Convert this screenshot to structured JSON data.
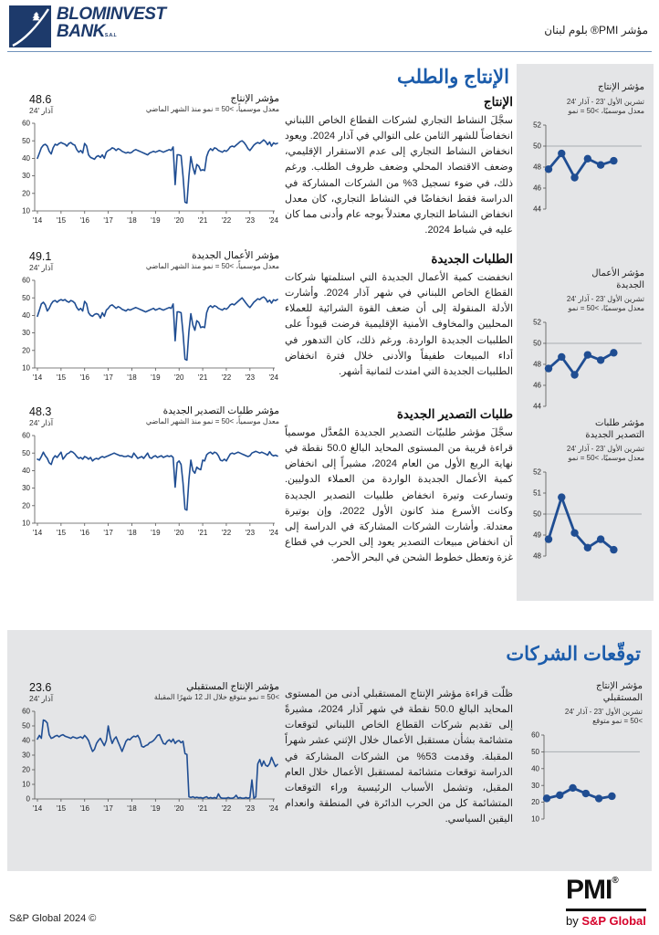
{
  "colors": {
    "accent_blue": "#1b5cab",
    "line_blue": "#1f4d92",
    "navy": "#1d3a6b",
    "band_gray": "#e4e5e7",
    "sp_red": "#d6002a",
    "refline_gray": "#a9adb2"
  },
  "header": {
    "brand_line1": "BLOMINVEST",
    "brand_line2": "BANK",
    "brand_suffix": "S.A.L",
    "doc_title": "مؤشر PMI® بلوم لبنان"
  },
  "section1": {
    "title": "الإنتاج والطلب",
    "blocks": [
      {
        "heading": "الإنتاج",
        "body": "سجَّلَ النشاط التجاري لشركات القطاع الخاص اللبناني انخفاضاً للشهر الثامن على التوالي في آذار 2024. ويعود انخفاض النشاط التجاري إلى عدم الاستقرار الإقليمي، وضعف الاقتصاد المحلي وضعف ظروف الطلب. ورغم ذلك، في ضوء تسجيل 3% من الشركات المشاركة في الدراسة فقط انخفاضًا في النشاط التجاري، كان معدل انخفاض النشاط التجاري معتدلاً بوجه عام وأدنى مما كان عليه في شباط 2024."
      },
      {
        "heading": "الطلبات الجديدة",
        "body": "انخفضت كمية الأعمال الجديدة التي استلمتها شركات القطاع الخاص اللبناني في شهر آذار 2024. وأشارت الأدلة المنقولة إلى أن ضعف القوة الشرائية للعملاء المحليين والمخاوف الأمنية الإقليمية فرضت قيوداً على الطلبيات الجديدة الواردة. ورغم ذلك، كان التدهور في أداء المبيعات طفيفاً والأدنى خلال فترة انخفاض الطلبيات الجديدة التي امتدت لثمانية أشهر."
      },
      {
        "heading": "طلبات التصدير الجديدة",
        "body": "سجَّلَ مؤشر طلبيّات التصدير الجديدة المُعدَّل موسمياً قراءة قريبة من المستوى المحايد البالغ 50.0 نقطة في نهاية الربع الأول من العام 2024، مشيراً إلى انخفاض كمية الأعمال الجديدة الواردة من العملاء الدوليين. وتسارعت وتيرة انخفاض طلبيات التصدير الجديدة وكانت الأسرع منذ كانون الأول 2022، وإن بوتيرة معتدلة. وأشارت الشركات المشاركة في الدراسة إلى أن انخفاض مبيعات التصدير يعود إلى الحرب في قطاع غزة وتعطل خطوط الشحن في البحر الأحمر."
      }
    ]
  },
  "section2": {
    "title": "توقّعات الشركات",
    "body": "ظلّت قراءة مؤشر الإنتاج المستقبلي أدنى من المستوى المحايد البالغ 50.0 نقطة في شهر آذار 2024، مشيرةً إلى تقديم شركات القطاع الخاص اللبناني لتوقعات متشائمة بشأن مستقبل الأعمال خلال الإثني عشر شهراً المقبلة. وقدمت 53% من الشركات المشاركة في الدراسة توقعات متشائمة لمستقبل الأعمال خلال العام المقبل، وتشمل الأسباب الرئيسية وراء التوقعات المتشائمة كل من الحرب الدائرة في المنطقة وانعدام اليقين السياسي."
  },
  "footer": {
    "copyright": "S&P Global 2024 ©",
    "pmi_word": "PMI",
    "pmi_reg": "®",
    "by": "by ",
    "sp_global": "S&P Global"
  },
  "chart_data": [
    {
      "name": "output-index-main",
      "type": "line",
      "kind": "main",
      "title_ar": "مؤشر الإنتاج",
      "subtitle_ar": "معدل موسمياً، >50 = نمو منذ الشهر الماضي",
      "latest_value": "48.6",
      "latest_period": "آذار '24",
      "x_range": "Jan 2014 - Mar 2024, monthly",
      "ylim": [
        10,
        60
      ],
      "yticks": [
        10,
        20,
        30,
        40,
        50,
        60
      ],
      "xticks": [
        "'14",
        "'15",
        "'16",
        "'17",
        "'18",
        "'19",
        "'20",
        "'21",
        "'22",
        "'23",
        "'24"
      ],
      "values": [
        40,
        43,
        46,
        47.5,
        48,
        47,
        44,
        42.5,
        46,
        48,
        47.5,
        48.5,
        49,
        48.5,
        48,
        47,
        48.5,
        49,
        48,
        47.5,
        45,
        43.5,
        44.5,
        43,
        48.5,
        47,
        42,
        40.5,
        40,
        39.5,
        41,
        41.5,
        40.5,
        42,
        40,
        43.5,
        44.5,
        45,
        46,
        45.5,
        44.5,
        45.5,
        45,
        44,
        43.5,
        43,
        43.5,
        43,
        43.5,
        44.5,
        45,
        44.5,
        44,
        43.5,
        43,
        42.5,
        42,
        43,
        43.5,
        44,
        43.5,
        44,
        44.5,
        44,
        43.5,
        44,
        44.5,
        45,
        44.5,
        46.5,
        25,
        42,
        42,
        41.5,
        30,
        15,
        14.5,
        30,
        41,
        35,
        31,
        36.5,
        35.5,
        33,
        33.5,
        33,
        41,
        44,
        45.5,
        44.5,
        46,
        45.5,
        44.5,
        44,
        43.5,
        44.5,
        44,
        45,
        46.5,
        47,
        46.5,
        47.5,
        48.5,
        49.5,
        50,
        49,
        47.5,
        45.5,
        44.5,
        46,
        47.5,
        48.5,
        49,
        48.5,
        49.5,
        50.5,
        49.5,
        47.8,
        49.3,
        47,
        48.8,
        48.2,
        48.6
      ]
    },
    {
      "name": "new-orders-index-main",
      "type": "line",
      "kind": "main",
      "title_ar": "مؤشر الأعمال الجديدة",
      "subtitle_ar": "معدل موسمياً، >50 = نمو منذ الشهر الماضي",
      "latest_value": "49.1",
      "latest_period": "آذار '24",
      "x_range": "Jan 2014 - Mar 2024, monthly",
      "ylim": [
        10,
        60
      ],
      "yticks": [
        10,
        20,
        30,
        40,
        50,
        60
      ],
      "xticks": [
        "'14",
        "'15",
        "'16",
        "'17",
        "'18",
        "'19",
        "'20",
        "'21",
        "'22",
        "'23",
        "'24"
      ],
      "values": [
        39.5,
        43,
        46.5,
        47.5,
        46,
        42.5,
        44,
        46.5,
        48,
        48.5,
        47.5,
        48.5,
        49,
        48.5,
        49,
        48,
        47.5,
        48.5,
        48,
        47,
        44.5,
        43,
        44,
        42.5,
        48,
        46.5,
        41.5,
        40,
        39.5,
        40.5,
        41,
        40.5,
        38.5,
        41.5,
        39.5,
        43,
        44,
        45.5,
        46,
        45,
        44,
        45,
        44.5,
        43.5,
        43,
        42.5,
        43.5,
        43,
        43.5,
        44,
        44.5,
        44,
        43.5,
        43,
        42.5,
        42,
        42.5,
        43,
        43.5,
        44,
        43,
        43.5,
        44,
        43.5,
        43,
        43.5,
        44,
        44.5,
        44,
        46.5,
        25.5,
        42,
        42,
        41.5,
        30,
        15,
        14.5,
        31,
        41,
        34.5,
        31.5,
        37,
        36,
        33,
        33.5,
        33,
        41.5,
        44.5,
        45.5,
        44.5,
        45.5,
        45,
        44,
        43.5,
        43,
        44,
        43.5,
        44.5,
        46,
        46.5,
        46,
        47,
        48,
        49,
        50,
        48.5,
        47,
        45.5,
        44.5,
        46,
        47.5,
        48.5,
        49.5,
        49,
        50,
        50.5,
        49.5,
        47.6,
        48.7,
        47,
        48.9,
        48.4,
        49.1
      ]
    },
    {
      "name": "new-export-orders-index-main",
      "type": "line",
      "kind": "main",
      "title_ar": "مؤشر طلبات التصدير الجديدة",
      "subtitle_ar": "معدل موسمياً، >50 = نمو منذ الشهر الماضي",
      "latest_value": "48.3",
      "latest_period": "آذار '24",
      "x_range": "Jan 2014 - Mar 2024, monthly",
      "ylim": [
        10,
        60
      ],
      "yticks": [
        10,
        20,
        30,
        40,
        50,
        60
      ],
      "xticks": [
        "'14",
        "'15",
        "'16",
        "'17",
        "'18",
        "'19",
        "'20",
        "'21",
        "'22",
        "'23",
        "'24"
      ],
      "values": [
        46.5,
        46,
        48,
        50.5,
        48.5,
        47,
        44.5,
        43.5,
        47,
        48.5,
        47.5,
        49,
        50.5,
        46.5,
        48,
        49.5,
        50,
        51,
        50.5,
        49.5,
        48,
        47,
        47.5,
        46.5,
        48,
        47.5,
        46.5,
        47.5,
        45.5,
        46.5,
        47,
        46.5,
        47.5,
        48,
        47.5,
        48,
        48.5,
        49,
        49.5,
        50,
        49.5,
        49,
        48.5,
        48.5,
        48,
        48,
        48.5,
        48,
        47.5,
        50,
        48.5,
        47,
        47.5,
        48,
        47,
        48.5,
        50,
        47.5,
        47,
        48,
        48.5,
        47.5,
        48,
        48.5,
        47.5,
        48,
        48.5,
        48,
        48.5,
        47.5,
        30.5,
        44.5,
        45.5,
        43.5,
        33,
        18,
        17.5,
        35,
        46,
        40,
        38.5,
        42,
        41,
        40.5,
        46,
        45.5,
        49,
        50,
        50.5,
        49.5,
        50.5,
        50,
        48.5,
        46,
        45.5,
        46.5,
        45.5,
        47.5,
        49.5,
        50,
        49.5,
        50,
        50.5,
        50,
        49.5,
        49,
        48.5,
        48,
        48.5,
        50,
        50.5,
        51,
        50.5,
        50,
        50.5,
        50,
        49.5,
        48.8,
        50.8,
        49.1,
        48.4,
        48.8,
        48.3
      ]
    },
    {
      "name": "future-output-index-main",
      "type": "line",
      "kind": "main",
      "title_ar": "مؤشر الإنتاج المستقبلي",
      "subtitle_ar": ">50 = نمو متوقع خلال الـ 12 شهرًا المقبلة",
      "latest_value": "23.6",
      "latest_period": "آذار '24",
      "x_range": "Jan 2014 - Mar 2024, monthly",
      "ylim": [
        0,
        60
      ],
      "yticks": [
        0,
        10,
        20,
        30,
        40,
        50,
        60
      ],
      "xticks": [
        "'14",
        "'15",
        "'16",
        "'17",
        "'18",
        "'19",
        "'20",
        "'21",
        "'22",
        "'23",
        "'24"
      ],
      "values": [
        41,
        43.5,
        41.5,
        54,
        53.5,
        52,
        44,
        41.5,
        42,
        43,
        43.5,
        42.5,
        43.5,
        44,
        43,
        42.5,
        42,
        41.5,
        42.5,
        42,
        41.5,
        42,
        42.5,
        41.5,
        43.5,
        42,
        40,
        36,
        32.5,
        34,
        38,
        40,
        41.5,
        39,
        36.5,
        40,
        50,
        42.5,
        38,
        41,
        42.5,
        39,
        36,
        32.5,
        36,
        39.5,
        41,
        40.5,
        42,
        43,
        42.5,
        43.5,
        41,
        36,
        35.5,
        36.5,
        37,
        38.5,
        39,
        40,
        41.5,
        43.5,
        44,
        41,
        38,
        37.5,
        39.5,
        40.5,
        39,
        41,
        38,
        39.5,
        40,
        38.5,
        39.5,
        31,
        30.5,
        1.5,
        1,
        1.5,
        0.8,
        1.2,
        0.8,
        1,
        0.5,
        1,
        1.5,
        0.5,
        1,
        0.5,
        1,
        0.5,
        3.5,
        1,
        0.5,
        0.5,
        0.5,
        1,
        0.5,
        0.5,
        1,
        2.5,
        0.5,
        1,
        0.5,
        0.5,
        1,
        0.5,
        1,
        13,
        0.5,
        1.5,
        24,
        27,
        22.5,
        26,
        23,
        22.3,
        24.2,
        28.5,
        25.2,
        22.2,
        23.6
      ]
    },
    {
      "name": "output-index-recent",
      "type": "line",
      "kind": "mini",
      "title_ar": "مؤشر الإنتاج",
      "range_ar": "تشرين الأول '23 - آذار '24",
      "note_ar": "معدل موسميًا، >50 = نمو",
      "ylim": [
        44,
        52
      ],
      "yticks": [
        44,
        46,
        48,
        50,
        52
      ],
      "refline": 50,
      "x_range": "Oct 2023 - Mar 2024",
      "values": [
        47.8,
        49.3,
        47.0,
        48.8,
        48.2,
        48.6
      ]
    },
    {
      "name": "new-orders-index-recent",
      "type": "line",
      "kind": "mini",
      "title_ar": "مؤشر الأعمال الجديدة",
      "range_ar": "تشرين الأول '23 - آذار '24",
      "note_ar": "معدل موسميًا، >50 = نمو",
      "ylim": [
        44,
        52
      ],
      "yticks": [
        44,
        46,
        48,
        50,
        52
      ],
      "refline": 50,
      "x_range": "Oct 2023 - Mar 2024",
      "values": [
        47.6,
        48.7,
        47.0,
        48.9,
        48.4,
        49.1
      ]
    },
    {
      "name": "new-export-orders-index-recent",
      "type": "line",
      "kind": "mini",
      "title_ar": "مؤشر طلبات التصدير الجديدة",
      "range_ar": "تشرين الأول '23 - آذار '24",
      "note_ar": "معدل موسميًا، >50 = نمو",
      "ylim": [
        48,
        52
      ],
      "yticks": [
        48,
        49,
        50,
        51,
        52
      ],
      "refline": 50,
      "x_range": "Oct 2023 - Mar 2024",
      "values": [
        48.8,
        50.8,
        49.1,
        48.4,
        48.8,
        48.3
      ]
    },
    {
      "name": "future-output-index-recent",
      "type": "line",
      "kind": "mini",
      "title_ar": "مؤشر الإنتاج المستقبلي",
      "range_ar": "تشرين الأول '23 - آذار '24",
      "note_ar": ">50 = نمو متوقع",
      "ylim": [
        10,
        60
      ],
      "yticks": [
        10,
        20,
        30,
        40,
        50,
        60
      ],
      "refline": 50,
      "x_range": "Oct 2023 - Mar 2024",
      "values": [
        22.3,
        24.2,
        28.5,
        25.2,
        22.2,
        23.6
      ]
    }
  ]
}
